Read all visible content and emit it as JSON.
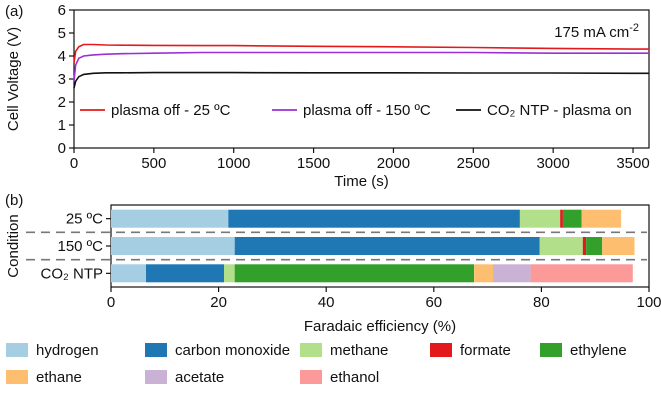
{
  "chart_data": [
    {
      "panel": "(a)",
      "type": "line",
      "xlabel": "Time (s)",
      "ylabel": "Cell Voltage (V)",
      "xlim": [
        0,
        3600
      ],
      "ylim": [
        0,
        6
      ],
      "xticks": [
        0,
        500,
        1000,
        1500,
        2000,
        2500,
        3000,
        3500
      ],
      "yticks": [
        0,
        1,
        2,
        3,
        4,
        5,
        6
      ],
      "annotation": {
        "value": "175 mA cm",
        "sup": "-2"
      },
      "grid": false,
      "series": [
        {
          "name": "plasma off - 25 ºC",
          "color": "#e31a1c",
          "x": [
            0,
            10,
            30,
            60,
            120,
            200,
            300,
            500,
            800,
            1000,
            1500,
            2000,
            2500,
            3000,
            3500,
            3600
          ],
          "y": [
            3.7,
            4.2,
            4.4,
            4.5,
            4.5,
            4.48,
            4.47,
            4.46,
            4.45,
            4.45,
            4.42,
            4.4,
            4.37,
            4.33,
            4.3,
            4.3
          ]
        },
        {
          "name": "plasma off - 150 ºC",
          "color": "#9b2fd4",
          "x": [
            0,
            10,
            30,
            60,
            120,
            200,
            300,
            500,
            800,
            1000,
            1500,
            2000,
            2500,
            3000,
            3500,
            3600
          ],
          "y": [
            2.9,
            3.6,
            3.9,
            4.0,
            4.05,
            4.08,
            4.1,
            4.12,
            4.15,
            4.15,
            4.15,
            4.15,
            4.15,
            4.12,
            4.12,
            4.12
          ]
        },
        {
          "name": "CO₂ NTP - plasma on",
          "color": "#111111",
          "x": [
            0,
            10,
            30,
            60,
            120,
            200,
            300,
            500,
            800,
            1000,
            1500,
            2000,
            2500,
            3000,
            3500,
            3600
          ],
          "y": [
            2.6,
            2.9,
            3.1,
            3.2,
            3.25,
            3.27,
            3.27,
            3.28,
            3.28,
            3.28,
            3.27,
            3.27,
            3.26,
            3.26,
            3.25,
            3.25
          ]
        }
      ],
      "legend": [
        {
          "label": "plasma off - 25 ºC",
          "color": "#e31a1c"
        },
        {
          "label": "plasma off - 150 ºC",
          "color": "#9b2fd4"
        },
        {
          "label": "CO₂ NTP - plasma on",
          "color": "#111111"
        }
      ]
    },
    {
      "panel": "(b)",
      "type": "bar",
      "orientation": "horizontal",
      "stacked": true,
      "xlabel": "Faradaic efficiency (%)",
      "ylabel": "Condition",
      "xlim": [
        0,
        100
      ],
      "xticks": [
        0,
        20,
        40,
        60,
        80,
        100
      ],
      "categories": [
        {
          "label": "25 ºC",
          "color": "#e31a1c"
        },
        {
          "label": "150 ºC",
          "color": "#9b2fd4"
        },
        {
          "label": "CO₂ NTP",
          "color": "#111111"
        }
      ],
      "products": [
        {
          "name": "hydrogen",
          "color": "#a6cee3"
        },
        {
          "name": "carbon monoxide",
          "color": "#1f78b4"
        },
        {
          "name": "methane",
          "color": "#b2df8a"
        },
        {
          "name": "formate",
          "color": "#e31a1c"
        },
        {
          "name": "ethylene",
          "color": "#33a02c"
        },
        {
          "name": "ethane",
          "color": "#fdbf6f"
        },
        {
          "name": "acetate",
          "color": "#cab2d6"
        },
        {
          "name": "ethanol",
          "color": "#fb9a99"
        }
      ],
      "values": [
        [
          21.8,
          54.2,
          7.5,
          0.5,
          3.5,
          7.3,
          0,
          0
        ],
        [
          23.0,
          56.7,
          8.0,
          0.6,
          3.0,
          6.0,
          0,
          0
        ],
        [
          6.5,
          14.5,
          2.0,
          0,
          44.5,
          3.5,
          7.0,
          19.0
        ]
      ]
    }
  ]
}
